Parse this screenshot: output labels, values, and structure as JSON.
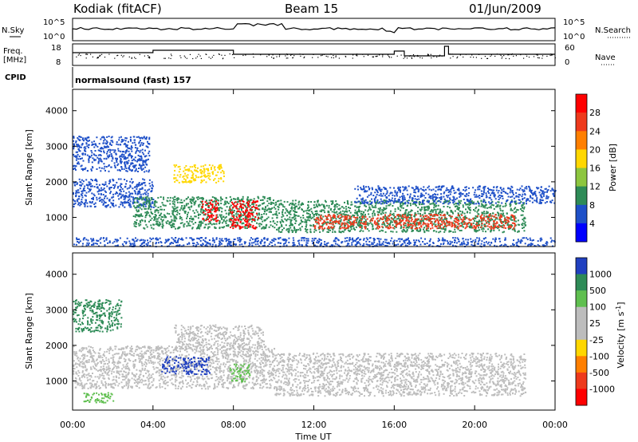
{
  "header": {
    "station": "Kodiak (fitACF)",
    "beam": "Beam 15",
    "date": "01/Jun/2009"
  },
  "aux_panels": {
    "nsky_label": "N.Sky",
    "nsky_ticks": [
      "10^5",
      "10^0"
    ],
    "nsearch_label": "N.Search",
    "nsearch_ticks": [
      "10^5",
      "10^0"
    ],
    "freq_label_1": "Freq.",
    "freq_label_2": "[MHz]",
    "freq_ticks": [
      "18",
      "8"
    ],
    "nave_label": "Nave",
    "nave_ticks": [
      "60",
      "0"
    ],
    "cpid_label": "CPID",
    "cpid_value": "normalsound (fast) 157"
  },
  "chart_data": [
    {
      "type": "heatmap",
      "name": "power-panel",
      "ylabel": "Slant Range [km]",
      "yticks": [
        "4000",
        "3000",
        "2000",
        "1000"
      ],
      "ytick_values": [
        4000,
        3000,
        2000,
        1000
      ],
      "ylim": [
        180,
        4600
      ],
      "xlim_hours": [
        0,
        24
      ],
      "colorbar": {
        "label": "Power [dB]",
        "ticks": [
          "28",
          "24",
          "20",
          "16",
          "12",
          "8",
          "4"
        ],
        "colors": [
          "#ff0000",
          "#ee3a1c",
          "#ff7f00",
          "#ffd700",
          "#8dc63f",
          "#2e8b57",
          "#1e50c8",
          "#0000ff"
        ]
      },
      "regions": [
        {
          "t": [
            0.0,
            3.8
          ],
          "r": [
            2300,
            3300
          ],
          "color": "#1e50c8"
        },
        {
          "t": [
            0.0,
            4.0
          ],
          "r": [
            1300,
            2100
          ],
          "color": "#1e50c8"
        },
        {
          "t": [
            3.0,
            10.0
          ],
          "r": [
            700,
            1600
          ],
          "color": "#2e8b57"
        },
        {
          "t": [
            6.4,
            7.2
          ],
          "r": [
            900,
            1500
          ],
          "color": "#ff0000"
        },
        {
          "t": [
            7.8,
            9.2
          ],
          "r": [
            700,
            1500
          ],
          "color": "#ff0000"
        },
        {
          "t": [
            5.0,
            7.5
          ],
          "r": [
            2000,
            2500
          ],
          "color": "#ffd700"
        },
        {
          "t": [
            10.0,
            22.5
          ],
          "r": [
            600,
            1500
          ],
          "color": "#2e8b57"
        },
        {
          "t": [
            12.0,
            22.0
          ],
          "r": [
            700,
            1100
          ],
          "color": "#ee3a1c"
        },
        {
          "t": [
            14.0,
            24.0
          ],
          "r": [
            1400,
            1900
          ],
          "color": "#1e50c8"
        },
        {
          "t": [
            0.0,
            24.0
          ],
          "r": [
            200,
            450
          ],
          "color": "#1e50c8"
        }
      ]
    },
    {
      "type": "heatmap",
      "name": "velocity-panel",
      "ylabel": "Slant Range [km]",
      "yticks": [
        "4000",
        "3000",
        "2000",
        "1000"
      ],
      "ytick_values": [
        4000,
        3000,
        2000,
        1000
      ],
      "ylim": [
        180,
        4600
      ],
      "xlim_hours": [
        0,
        24
      ],
      "colorbar": {
        "label": "Velocity [m s",
        "label_sup": "-1",
        "label_end": "]",
        "ticks": [
          "1000",
          "500",
          "100",
          "25",
          "-25",
          "-100",
          "-500",
          "-1000"
        ],
        "colors": [
          "#2040c0",
          "#2e8b57",
          "#5fbf4f",
          "#bdbdbd",
          "#bdbdbd",
          "#ffd700",
          "#ff7f00",
          "#ee3a1c",
          "#ff0000"
        ]
      },
      "regions": [
        {
          "t": [
            0.0,
            2.4
          ],
          "r": [
            2400,
            3300
          ],
          "color": "#2e8b57"
        },
        {
          "t": [
            0.0,
            10.0
          ],
          "r": [
            800,
            2000
          ],
          "color": "#bdbdbd"
        },
        {
          "t": [
            4.4,
            6.8
          ],
          "r": [
            1200,
            1700
          ],
          "color": "#2040c0"
        },
        {
          "t": [
            7.8,
            8.8
          ],
          "r": [
            1000,
            1500
          ],
          "color": "#5fbf4f"
        },
        {
          "t": [
            10.0,
            22.5
          ],
          "r": [
            600,
            1800
          ],
          "color": "#bdbdbd"
        },
        {
          "t": [
            5.0,
            9.5
          ],
          "r": [
            1900,
            2600
          ],
          "color": "#bdbdbd"
        },
        {
          "t": [
            0.5,
            2.0
          ],
          "r": [
            400,
            700
          ],
          "color": "#5fbf4f"
        }
      ]
    }
  ],
  "xaxis": {
    "ticks": [
      "00:00",
      "04:00",
      "08:00",
      "12:00",
      "16:00",
      "20:00",
      "00:00"
    ],
    "tick_hours": [
      0,
      4,
      8,
      12,
      16,
      20,
      24
    ],
    "label": "Time UT"
  }
}
